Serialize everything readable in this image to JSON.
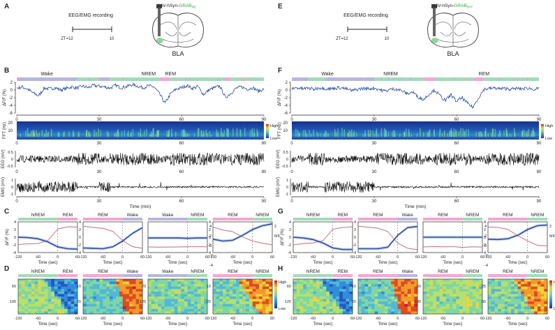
{
  "colors": {
    "nrem": "#9fdcb8",
    "wake": "#b6b6e0",
    "rem": "#f4a6d3",
    "trace": "#2b4fa3",
    "shade": "#d99aa4",
    "spectrogram_bg": "#17338a",
    "eeg": "#111111"
  },
  "panel_labels": [
    "A",
    "B",
    "C",
    "D",
    "E",
    "F",
    "G",
    "H"
  ],
  "left": {
    "sensor_label": "AAV-hSyn-",
    "sensor_name": "GRAB",
    "sensor_sub": "NE",
    "region": "BLA",
    "protocol_title": "EEG/EMG recording",
    "zt_start": "ZT=12",
    "zt_end": "10",
    "states": {
      "wake": "Wake",
      "nrem": "NREM",
      "rem": "REM"
    },
    "panelC": [
      {
        "pre": "NREM",
        "post": "REM",
        "ylabel": "ΔF/F (%)",
        "yticks": [
          "4",
          "2",
          "0",
          "-2",
          "-4"
        ],
        "right_ticks": []
      },
      {
        "pre": "REM",
        "post": "Wake",
        "ylabel": "",
        "yticks": [
          "4",
          "2",
          "0",
          "-2",
          "-4"
        ],
        "right_ticks": []
      },
      {
        "pre": "Wake",
        "post": "NREM",
        "ylabel": "",
        "yticks": [],
        "right_ticks": [
          "4",
          "2",
          "0",
          "-2",
          "-4"
        ]
      },
      {
        "pre": "REM",
        "post": "NREM",
        "ylabel": "",
        "yticks": [
          "4",
          "2",
          "0",
          "-2",
          "-4"
        ],
        "right_ticks": [
          "2",
          "θ/δ"
        ]
      }
    ],
    "panelD": [
      {
        "pre": "NREM",
        "post": "REM",
        "yticks": [
          "50",
          "100"
        ]
      },
      {
        "pre": "REM",
        "post": "Wake",
        "yticks": [
          "10",
          "20"
        ]
      },
      {
        "pre": "Wake",
        "post": "NREM",
        "yticks": [
          "20",
          "120"
        ]
      },
      {
        "pre": "REM",
        "post": "NREM",
        "yticks": [
          "10",
          "20"
        ]
      }
    ]
  },
  "right": {
    "sensor_label": "AAV-hSyn-",
    "sensor_name": "GRAB",
    "sensor_sub": "5HT",
    "region": "BLA",
    "protocol_title": "EEG/EMG recording",
    "zt_start": "ZT=12",
    "zt_end": "10",
    "states": {
      "wake": "Wake",
      "nrem": "NREM",
      "rem": "REM"
    },
    "panelC": [
      {
        "pre": "NREM",
        "post": "REM",
        "ylabel": "ΔF/F (%)",
        "yticks": [
          "4",
          "2",
          "0",
          "-2",
          "-4"
        ],
        "right_ticks": []
      },
      {
        "pre": "REM",
        "post": "Wake",
        "ylabel": "",
        "yticks": [
          "4",
          "2",
          "0",
          "-2",
          "-4"
        ],
        "right_ticks": []
      },
      {
        "pre": "REM",
        "post": "NREM",
        "ylabel": "",
        "yticks": [],
        "right_ticks": [
          "4",
          "2",
          "0",
          "-2",
          "-4"
        ]
      },
      {
        "pre": "REM",
        "post": "NREM",
        "ylabel": "",
        "yticks": [
          "4",
          "2",
          "0",
          "-2",
          "-4"
        ],
        "right_ticks": [
          "2",
          "θ/δ"
        ]
      }
    ],
    "panelD": [
      {
        "pre": "NREM",
        "post": "REM",
        "yticks": [
          "60",
          "120"
        ]
      },
      {
        "pre": "REM",
        "post": "Wake",
        "yticks": [
          "10",
          "20"
        ]
      },
      {
        "pre": "REM",
        "post": "NREM",
        "yticks": [
          "50",
          "100"
        ]
      },
      {
        "pre": "REM",
        "post": "NREM",
        "yticks": [
          "25",
          "50"
        ]
      }
    ]
  },
  "axis": {
    "dff_label": "ΔF/F (%)",
    "fft_label": "FFT (Hz)",
    "eeg_label": "EEG (mV)",
    "emg_label": "EMG (mV)",
    "time_min_label": "Time (min)",
    "time_sec_label": "Time (sec)",
    "min_ticks": [
      "0",
      "30",
      "60",
      "90"
    ],
    "sec_ticks": [
      "-120",
      "-60",
      "0",
      "60"
    ],
    "dff_ticks": [
      "2",
      "0",
      "-2",
      "-4",
      "-6"
    ],
    "fft_ticks": [
      "20",
      "10"
    ],
    "eeg_ticks": [
      "0.5",
      "0",
      "-0.5"
    ],
    "emg_ticks": [
      "1",
      "0",
      "-1"
    ],
    "scale_high": "High",
    "scale_low": "Low"
  },
  "chart_data": [
    {
      "type": "line",
      "panel": "B",
      "title": "",
      "xlabel": "Time (min)",
      "ylabel": "ΔF/F (%)",
      "xlim": [
        0,
        90
      ],
      "ylim": [
        -6,
        2
      ],
      "hypnogram": [
        {
          "state": "Wake",
          "start": 0,
          "end": 22
        },
        {
          "state": "NREM",
          "start": 22,
          "end": 30
        },
        {
          "state": "Wake",
          "start": 30,
          "end": 34
        },
        {
          "state": "NREM",
          "start": 34,
          "end": 52
        },
        {
          "state": "REM",
          "start": 52,
          "end": 56
        },
        {
          "state": "NREM",
          "start": 56,
          "end": 76
        },
        {
          "state": "REM",
          "start": 76,
          "end": 78
        },
        {
          "state": "NREM",
          "start": 78,
          "end": 90
        }
      ],
      "series": [
        {
          "x": [
            0,
            2,
            4,
            6,
            8,
            10,
            12,
            14,
            16,
            18,
            20,
            22,
            24,
            26,
            28,
            30,
            32,
            34,
            36,
            38,
            40,
            42,
            44,
            46,
            48,
            50,
            52,
            54,
            56,
            58,
            60,
            62,
            64,
            66,
            68,
            70,
            72,
            74,
            76,
            78,
            80,
            82,
            84,
            86,
            88,
            90
          ],
          "values": [
            0.5,
            0.8,
            0.2,
            -0.8,
            -1.5,
            0.5,
            0.3,
            0.6,
            0.0,
            0.4,
            0.8,
            0.5,
            1.0,
            0.6,
            1.2,
            1.0,
            0.8,
            0.5,
            1.2,
            0.6,
            0.9,
            1.4,
            1.0,
            0.6,
            1.1,
            0.8,
            -1.0,
            -3.5,
            -1.0,
            0.2,
            0.6,
            1.2,
            0.4,
            0.9,
            -1.2,
            0.0,
            0.6,
            1.0,
            -2.0,
            -0.8,
            0.5,
            0.8,
            0.2,
            0.6,
            -0.3,
            0.2
          ]
        }
      ]
    },
    {
      "type": "line",
      "panel": "F",
      "title": "",
      "xlabel": "Time (min)",
      "ylabel": "ΔF/F (%)",
      "xlim": [
        0,
        90
      ],
      "ylim": [
        -6,
        2
      ],
      "hypnogram": [
        {
          "state": "Wake",
          "start": 0,
          "end": 6
        },
        {
          "state": "NREM",
          "start": 6,
          "end": 12
        },
        {
          "state": "Wake",
          "start": 12,
          "end": 30
        },
        {
          "state": "NREM",
          "start": 30,
          "end": 48
        },
        {
          "state": "REM",
          "start": 48,
          "end": 52
        },
        {
          "state": "NREM",
          "start": 52,
          "end": 66
        },
        {
          "state": "REM",
          "start": 66,
          "end": 70
        },
        {
          "state": "NREM",
          "start": 70,
          "end": 90
        }
      ],
      "series": [
        {
          "x": [
            0,
            2,
            4,
            6,
            8,
            10,
            12,
            14,
            16,
            18,
            20,
            22,
            24,
            26,
            28,
            30,
            32,
            34,
            36,
            38,
            40,
            42,
            44,
            46,
            48,
            50,
            52,
            54,
            56,
            58,
            60,
            62,
            64,
            66,
            68,
            70,
            72,
            74,
            76,
            78,
            80,
            82,
            84,
            86,
            88,
            90
          ],
          "values": [
            0.4,
            0.6,
            0.3,
            0.5,
            0.2,
            0.6,
            0.4,
            0.3,
            0.5,
            0.6,
            0.2,
            -0.2,
            0.2,
            0.4,
            0.3,
            0.5,
            0.1,
            -0.3,
            0.2,
            0.3,
            -0.2,
            -1.0,
            -0.5,
            -1.8,
            -2.5,
            -1.0,
            0.0,
            -1.5,
            -2.8,
            -1.2,
            -3.0,
            -2.0,
            -3.5,
            -4.5,
            -2.0,
            0.2,
            0.4,
            0.5,
            0.3,
            0.4,
            0.2,
            0.4,
            0.3,
            0.5,
            0.2,
            0.3
          ]
        }
      ]
    },
    {
      "type": "line",
      "panel": "C",
      "xlabel": "Time (sec)",
      "ylabel": "ΔF/F (%)",
      "xlim": [
        -120,
        60
      ],
      "ylim": [
        -4,
        4
      ],
      "panels": [
        {
          "x": [
            -120,
            -90,
            -60,
            -30,
            0,
            30,
            60
          ],
          "mean": [
            0.0,
            -0.1,
            -0.4,
            -1.2,
            -2.5,
            -3.0,
            -3.1
          ],
          "ratio": [
            -2.0,
            -1.8,
            -1.5,
            -1.0,
            2.0,
            2.6,
            2.8
          ]
        },
        {
          "x": [
            -120,
            -90,
            -60,
            -30,
            0,
            30,
            60
          ],
          "mean": [
            -2.8,
            -2.9,
            -3.0,
            -2.5,
            -1.0,
            1.0,
            2.5
          ],
          "ratio": [
            2.8,
            2.5,
            2.2,
            1.5,
            -1.0,
            -2.5,
            -3.0
          ]
        },
        {
          "x": [
            -120,
            -90,
            -60,
            -30,
            0,
            30,
            60
          ],
          "mean": [
            -0.2,
            -0.2,
            -0.2,
            -0.2,
            -0.3,
            -0.2,
            -0.2
          ],
          "ratio": [
            -2.5,
            -2.5,
            -2.5,
            -2.5,
            -2.4,
            -2.5,
            -2.5
          ]
        },
        {
          "x": [
            -120,
            -90,
            -60,
            -30,
            0,
            30,
            60
          ],
          "mean": [
            -0.5,
            -1.0,
            -0.8,
            0.5,
            2.0,
            3.0,
            3.5
          ],
          "ratio": [
            2.5,
            2.0,
            1.5,
            0.0,
            -1.0,
            -1.5,
            -2.0
          ]
        }
      ]
    },
    {
      "type": "line",
      "panel": "G",
      "xlabel": "Time (sec)",
      "ylabel": "ΔF/F (%)",
      "xlim": [
        -120,
        60
      ],
      "ylim": [
        -4,
        4
      ],
      "panels": [
        {
          "x": [
            -120,
            -90,
            -60,
            -30,
            0,
            30,
            60
          ],
          "mean": [
            0.0,
            -0.2,
            -0.6,
            -1.5,
            -2.8,
            -3.2,
            -3.2
          ],
          "ratio": [
            -2.0,
            -1.8,
            -1.4,
            -0.8,
            2.0,
            2.5,
            2.6
          ]
        },
        {
          "x": [
            -120,
            -90,
            -60,
            -30,
            0,
            30,
            60
          ],
          "mean": [
            -3.0,
            -3.0,
            -3.0,
            -2.6,
            0.5,
            2.5,
            2.8
          ],
          "ratio": [
            2.8,
            2.6,
            2.4,
            1.5,
            -1.5,
            -2.8,
            -3.2
          ]
        },
        {
          "x": [
            -120,
            -90,
            -60,
            -30,
            0,
            30,
            60
          ],
          "mean": [
            0.0,
            0.0,
            0.0,
            0.0,
            0.0,
            0.0,
            0.0
          ],
          "ratio": [
            -2.5,
            -2.5,
            -2.5,
            -2.5,
            -2.5,
            -2.5,
            -2.5
          ]
        },
        {
          "x": [
            -120,
            -90,
            -60,
            -30,
            0,
            30,
            60
          ],
          "mean": [
            -0.5,
            -0.6,
            -0.4,
            0.5,
            2.0,
            3.0,
            3.2
          ],
          "ratio": [
            2.6,
            2.4,
            2.0,
            0.5,
            -1.0,
            -2.0,
            -2.2
          ]
        }
      ]
    }
  ]
}
